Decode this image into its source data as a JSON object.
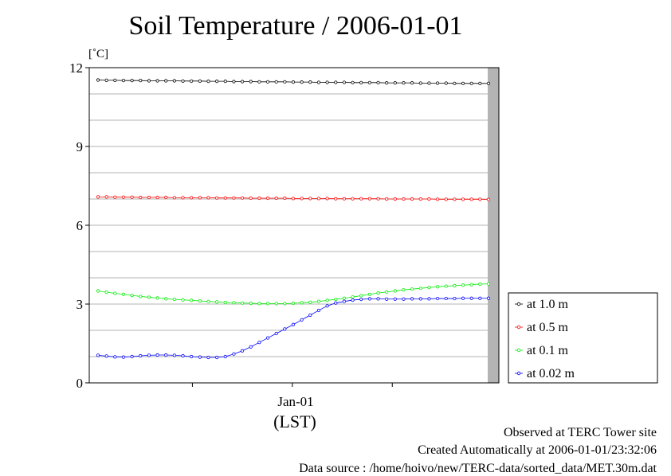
{
  "chart_data": {
    "type": "line",
    "title": "Soil Temperature / 2006-01-01",
    "ylabel": "[˚C]",
    "xlabel": "(LST)",
    "xtick_labels": [
      "Jan-01"
    ],
    "ylim": [
      0,
      12
    ],
    "yticks": [
      0,
      3,
      6,
      9,
      12
    ],
    "x_hours": [
      0.25,
      0.75,
      1.25,
      1.75,
      2.25,
      2.75,
      3.25,
      3.75,
      4.25,
      4.75,
      5.25,
      5.75,
      6.25,
      6.75,
      7.25,
      7.75,
      8.25,
      8.75,
      9.25,
      9.75,
      10.25,
      10.75,
      11.25,
      11.75,
      12.25,
      12.75,
      13.25,
      13.75,
      14.25,
      14.75,
      15.25,
      15.75,
      16.25,
      16.75,
      17.25,
      17.75,
      18.25,
      18.75,
      19.25,
      19.75,
      20.25,
      20.75,
      21.25,
      21.75,
      22.25,
      22.75,
      23.25
    ],
    "grid": true,
    "legend_position": "right",
    "series": [
      {
        "name": "at 1.0 m",
        "color": "#000000",
        "values": [
          11.53,
          11.52,
          11.52,
          11.51,
          11.51,
          11.51,
          11.5,
          11.5,
          11.5,
          11.5,
          11.49,
          11.49,
          11.49,
          11.48,
          11.48,
          11.48,
          11.47,
          11.47,
          11.47,
          11.46,
          11.46,
          11.46,
          11.46,
          11.45,
          11.45,
          11.45,
          11.44,
          11.44,
          11.44,
          11.44,
          11.43,
          11.43,
          11.43,
          11.43,
          11.42,
          11.42,
          11.42,
          11.42,
          11.41,
          11.41,
          11.41,
          11.41,
          11.4,
          11.4,
          11.4,
          11.4,
          11.4
        ]
      },
      {
        "name": "at 0.5 m",
        "color": "#ff0000",
        "values": [
          7.08,
          7.08,
          7.07,
          7.07,
          7.07,
          7.06,
          7.06,
          7.06,
          7.06,
          7.05,
          7.05,
          7.05,
          7.05,
          7.05,
          7.04,
          7.04,
          7.04,
          7.04,
          7.03,
          7.03,
          7.03,
          7.03,
          7.03,
          7.02,
          7.02,
          7.02,
          7.02,
          7.02,
          7.01,
          7.01,
          7.01,
          7.01,
          7.01,
          7.01,
          7.0,
          7.0,
          7.0,
          7.0,
          7.0,
          7.0,
          6.99,
          6.99,
          6.99,
          6.99,
          6.99,
          6.99,
          6.98
        ]
      },
      {
        "name": "at 0.1 m",
        "color": "#00ee00",
        "values": [
          3.5,
          3.45,
          3.41,
          3.37,
          3.33,
          3.29,
          3.26,
          3.23,
          3.2,
          3.18,
          3.16,
          3.14,
          3.12,
          3.1,
          3.08,
          3.06,
          3.05,
          3.04,
          3.03,
          3.02,
          3.02,
          3.02,
          3.02,
          3.03,
          3.05,
          3.07,
          3.1,
          3.14,
          3.18,
          3.22,
          3.27,
          3.32,
          3.37,
          3.42,
          3.46,
          3.5,
          3.54,
          3.57,
          3.6,
          3.63,
          3.66,
          3.68,
          3.7,
          3.72,
          3.74,
          3.76,
          3.77
        ]
      },
      {
        "name": "at 0.02 m",
        "color": "#0000ff",
        "values": [
          1.05,
          1.02,
          0.99,
          0.98,
          1.0,
          1.03,
          1.05,
          1.06,
          1.06,
          1.05,
          1.03,
          1.0,
          0.98,
          0.97,
          0.97,
          1.0,
          1.1,
          1.22,
          1.37,
          1.54,
          1.71,
          1.88,
          2.05,
          2.22,
          2.4,
          2.58,
          2.76,
          2.93,
          3.04,
          3.1,
          3.15,
          3.18,
          3.2,
          3.2,
          3.19,
          3.19,
          3.19,
          3.2,
          3.2,
          3.2,
          3.21,
          3.21,
          3.21,
          3.22,
          3.22,
          3.22,
          3.22
        ]
      }
    ]
  },
  "footer": {
    "line1": "Observed at TERC Tower site",
    "line2": "Created Automatically at 2006-01-01/23:32:06",
    "line3": "Data source : /home/hoivo/new/TERC-data/sorted_data/MET.30m.dat"
  },
  "colors": {
    "gray_band": "#b4b4b4",
    "grid": "#9a9a9a"
  }
}
